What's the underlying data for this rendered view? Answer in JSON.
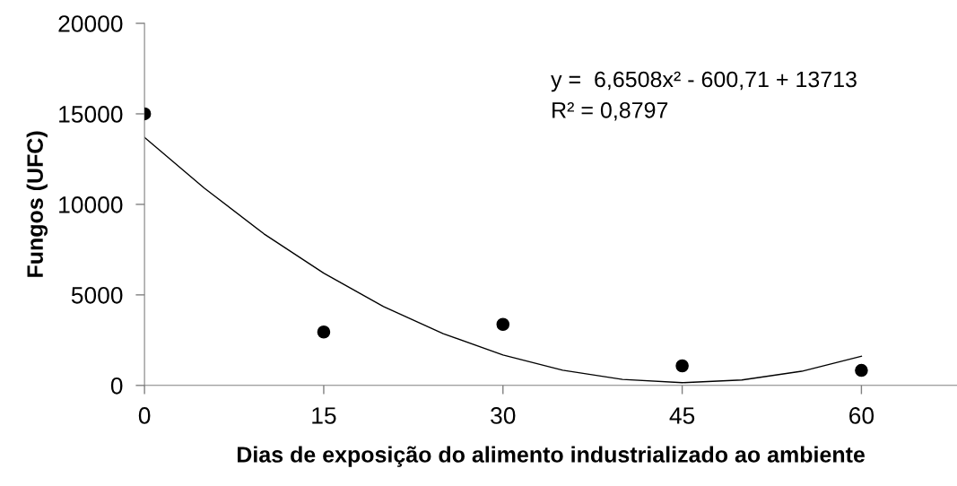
{
  "chart_data": {
    "type": "scatter",
    "xlabel": "Dias de exposição do alimento industrializado ao ambiente",
    "ylabel": "Fungos (UFC)",
    "x": [
      0,
      15,
      30,
      45,
      60
    ],
    "series": [
      {
        "color": "#000000",
        "marker": "circle",
        "values": [
          15000,
          2950,
          3370,
          1080,
          830
        ]
      },
      {
        "type": "line",
        "color": "#000000",
        "marker": "none",
        "line_style": "solid",
        "x": [
          0,
          5,
          10,
          15,
          20,
          25,
          30,
          35,
          40,
          45,
          50,
          55,
          60
        ],
        "values": [
          13700,
          10900,
          8370,
          6200,
          4360,
          2860,
          1680,
          840,
          330,
          150,
          300,
          780,
          1610
        ]
      }
    ],
    "annotations": [
      "y =  6,6508x² - 600,71 + 13713",
      "R² = 0,8797"
    ],
    "xlim": [
      0,
      68
    ],
    "xticks": [
      0,
      15,
      30,
      45,
      60
    ],
    "ylim": [
      0,
      20000
    ],
    "yticks": [
      0,
      5000,
      10000,
      15000,
      20000
    ],
    "grid": false,
    "legend": false
  }
}
